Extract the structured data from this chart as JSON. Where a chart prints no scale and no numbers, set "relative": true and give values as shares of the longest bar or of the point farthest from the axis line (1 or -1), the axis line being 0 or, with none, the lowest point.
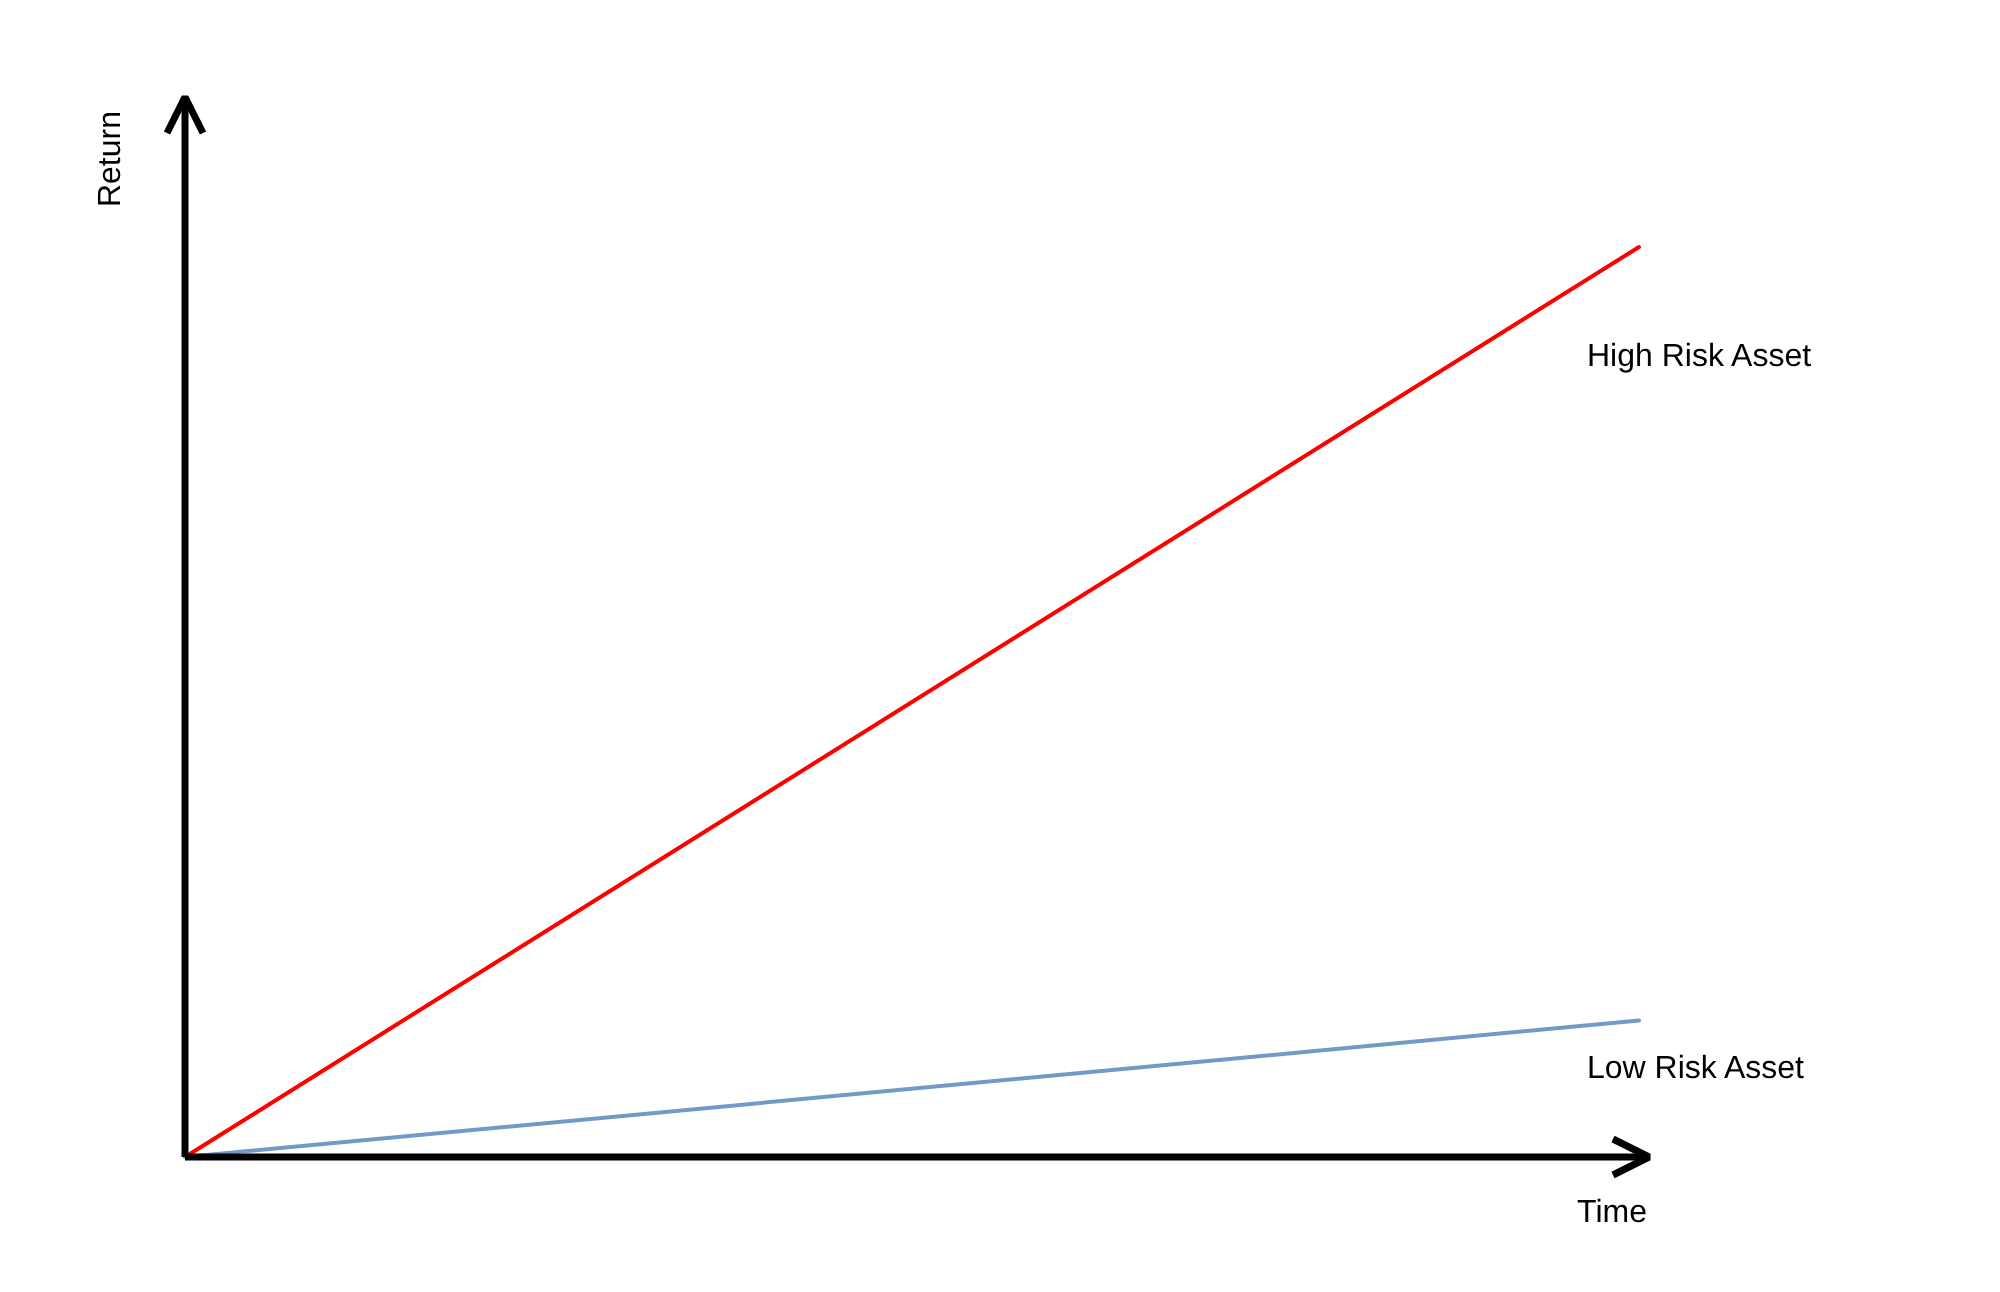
{
  "chart_data": {
    "type": "line",
    "xlabel": "Time",
    "ylabel": "Return",
    "relative": true,
    "categories": [
      null,
      null
    ],
    "series": [
      {
        "name": "High Risk Asset",
        "color": "#ff0000",
        "values": [
          0,
          1
        ]
      },
      {
        "name": "Low Risk Asset",
        "color": "#7399c6",
        "values": [
          0,
          0.15
        ]
      }
    ]
  }
}
